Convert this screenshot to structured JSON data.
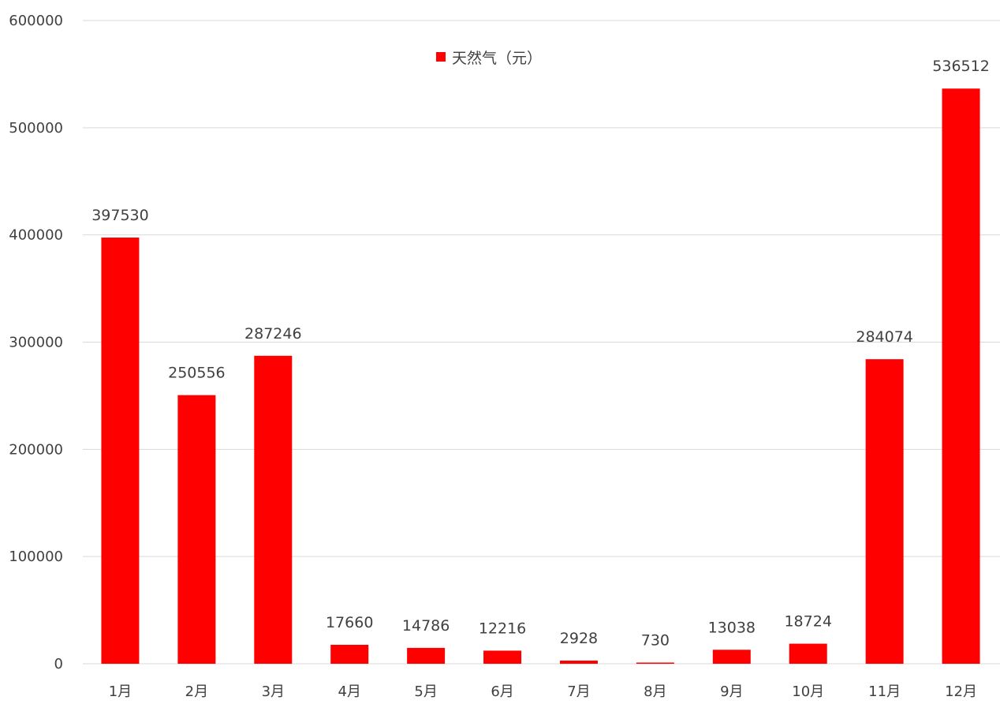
{
  "chart_data": {
    "type": "bar",
    "categories": [
      "1月",
      "2月",
      "3月",
      "4月",
      "5月",
      "6月",
      "7月",
      "8月",
      "9月",
      "10月",
      "11月",
      "12月"
    ],
    "series": [
      {
        "name": "天然气（元）",
        "values": [
          397530,
          250556,
          287246,
          17660,
          14786,
          12216,
          2928,
          730,
          13038,
          18724,
          284074,
          536512
        ]
      }
    ],
    "ylim": [
      0,
      600000
    ],
    "yticks": [
      "0",
      "100000",
      "200000",
      "300000",
      "400000",
      "500000",
      "600000"
    ],
    "grid": true,
    "legend_position": "top-center",
    "colors": {
      "bar": "#ff0000",
      "grid": "#d9d9d9",
      "text": "#404040"
    }
  }
}
